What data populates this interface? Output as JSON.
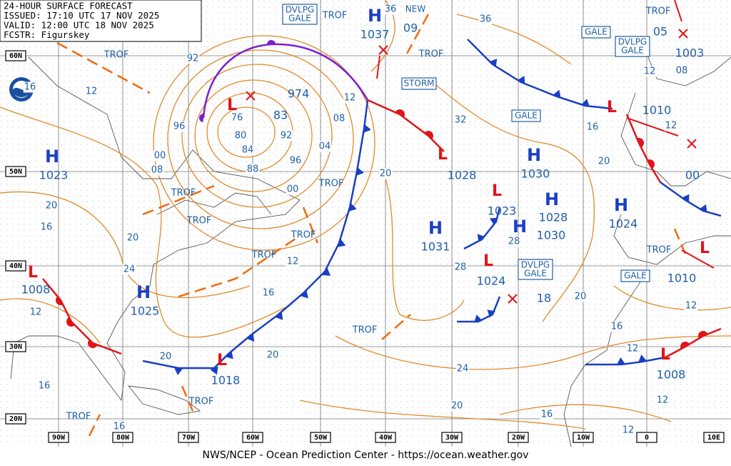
{
  "header": {
    "lines": [
      "24-HOUR SURFACE FORECAST",
      "ISSUED: 17:10 UTC 17 NOV 2025",
      "VALID:  12:00 UTC 18 NOV 2025",
      "FCSTR:  Figurskey"
    ]
  },
  "footer": "NWS/NCEP - Ocean Prediction Center - https://ocean.weather.gov",
  "latitude_labels": [
    "60N",
    "50N",
    "40N",
    "30N",
    "20N"
  ],
  "longitude_labels": [
    "90W",
    "80W",
    "70W",
    "60W",
    "50W",
    "40W",
    "30W",
    "20W",
    "10W",
    "0",
    "10E"
  ],
  "high_centers": [
    {
      "symbol": "H",
      "pressure": "1037"
    },
    {
      "symbol": "H",
      "pressure": "1023"
    },
    {
      "symbol": "H",
      "pressure": "1025"
    },
    {
      "symbol": "H",
      "pressure": "1030"
    },
    {
      "symbol": "H",
      "pressure": "1028"
    },
    {
      "symbol": "H",
      "pressure": "1030"
    },
    {
      "symbol": "H",
      "pressure": "1031"
    },
    {
      "symbol": "H",
      "pressure": "1024"
    }
  ],
  "low_centers": [
    {
      "symbol": "L",
      "pressure": "974"
    },
    {
      "symbol": "L",
      "pressure": "1028"
    },
    {
      "symbol": "L",
      "pressure": "1023"
    },
    {
      "symbol": "L",
      "pressure": "1024"
    },
    {
      "symbol": "L",
      "pressure": "1008"
    },
    {
      "symbol": "L",
      "pressure": "1018"
    },
    {
      "symbol": "L",
      "pressure": "1010"
    },
    {
      "symbol": "L",
      "pressure": "1008"
    },
    {
      "symbol": "L",
      "pressure": "1010"
    }
  ],
  "pressure_labels": [
    "83",
    "1003",
    "09",
    "05",
    "00",
    "18"
  ],
  "warnings": [
    {
      "lines": [
        "DVLPG",
        "GALE"
      ]
    },
    {
      "lines": [
        "STORM"
      ]
    },
    {
      "lines": [
        "GALE"
      ]
    },
    {
      "lines": [
        "GALE"
      ]
    },
    {
      "lines": [
        "DVLPG",
        "GALE"
      ]
    },
    {
      "lines": [
        "DVLPG",
        "GALE"
      ]
    },
    {
      "lines": [
        "GALE"
      ]
    }
  ],
  "new_label": "NEW",
  "trough_labels": [
    "TROF",
    "TROF",
    "TROF",
    "TROF",
    "TROF",
    "TROF",
    "TROF",
    "TROF",
    "TROF",
    "TROF",
    "TROF",
    "TROF",
    "TROF"
  ],
  "isobar_labels": [
    "36",
    "36",
    "16",
    "12",
    "92",
    "96",
    "00",
    "08",
    "20",
    "16",
    "20",
    "24",
    "12",
    "20",
    "16",
    "16",
    "76",
    "80",
    "84",
    "88",
    "92",
    "96",
    "00",
    "04",
    "08",
    "12",
    "12",
    "16",
    "20",
    "20",
    "32",
    "28",
    "28",
    "24",
    "20",
    "16",
    "12",
    "12",
    "12",
    "16",
    "20",
    "12",
    "20",
    "16",
    "12",
    "12",
    "08"
  ]
}
